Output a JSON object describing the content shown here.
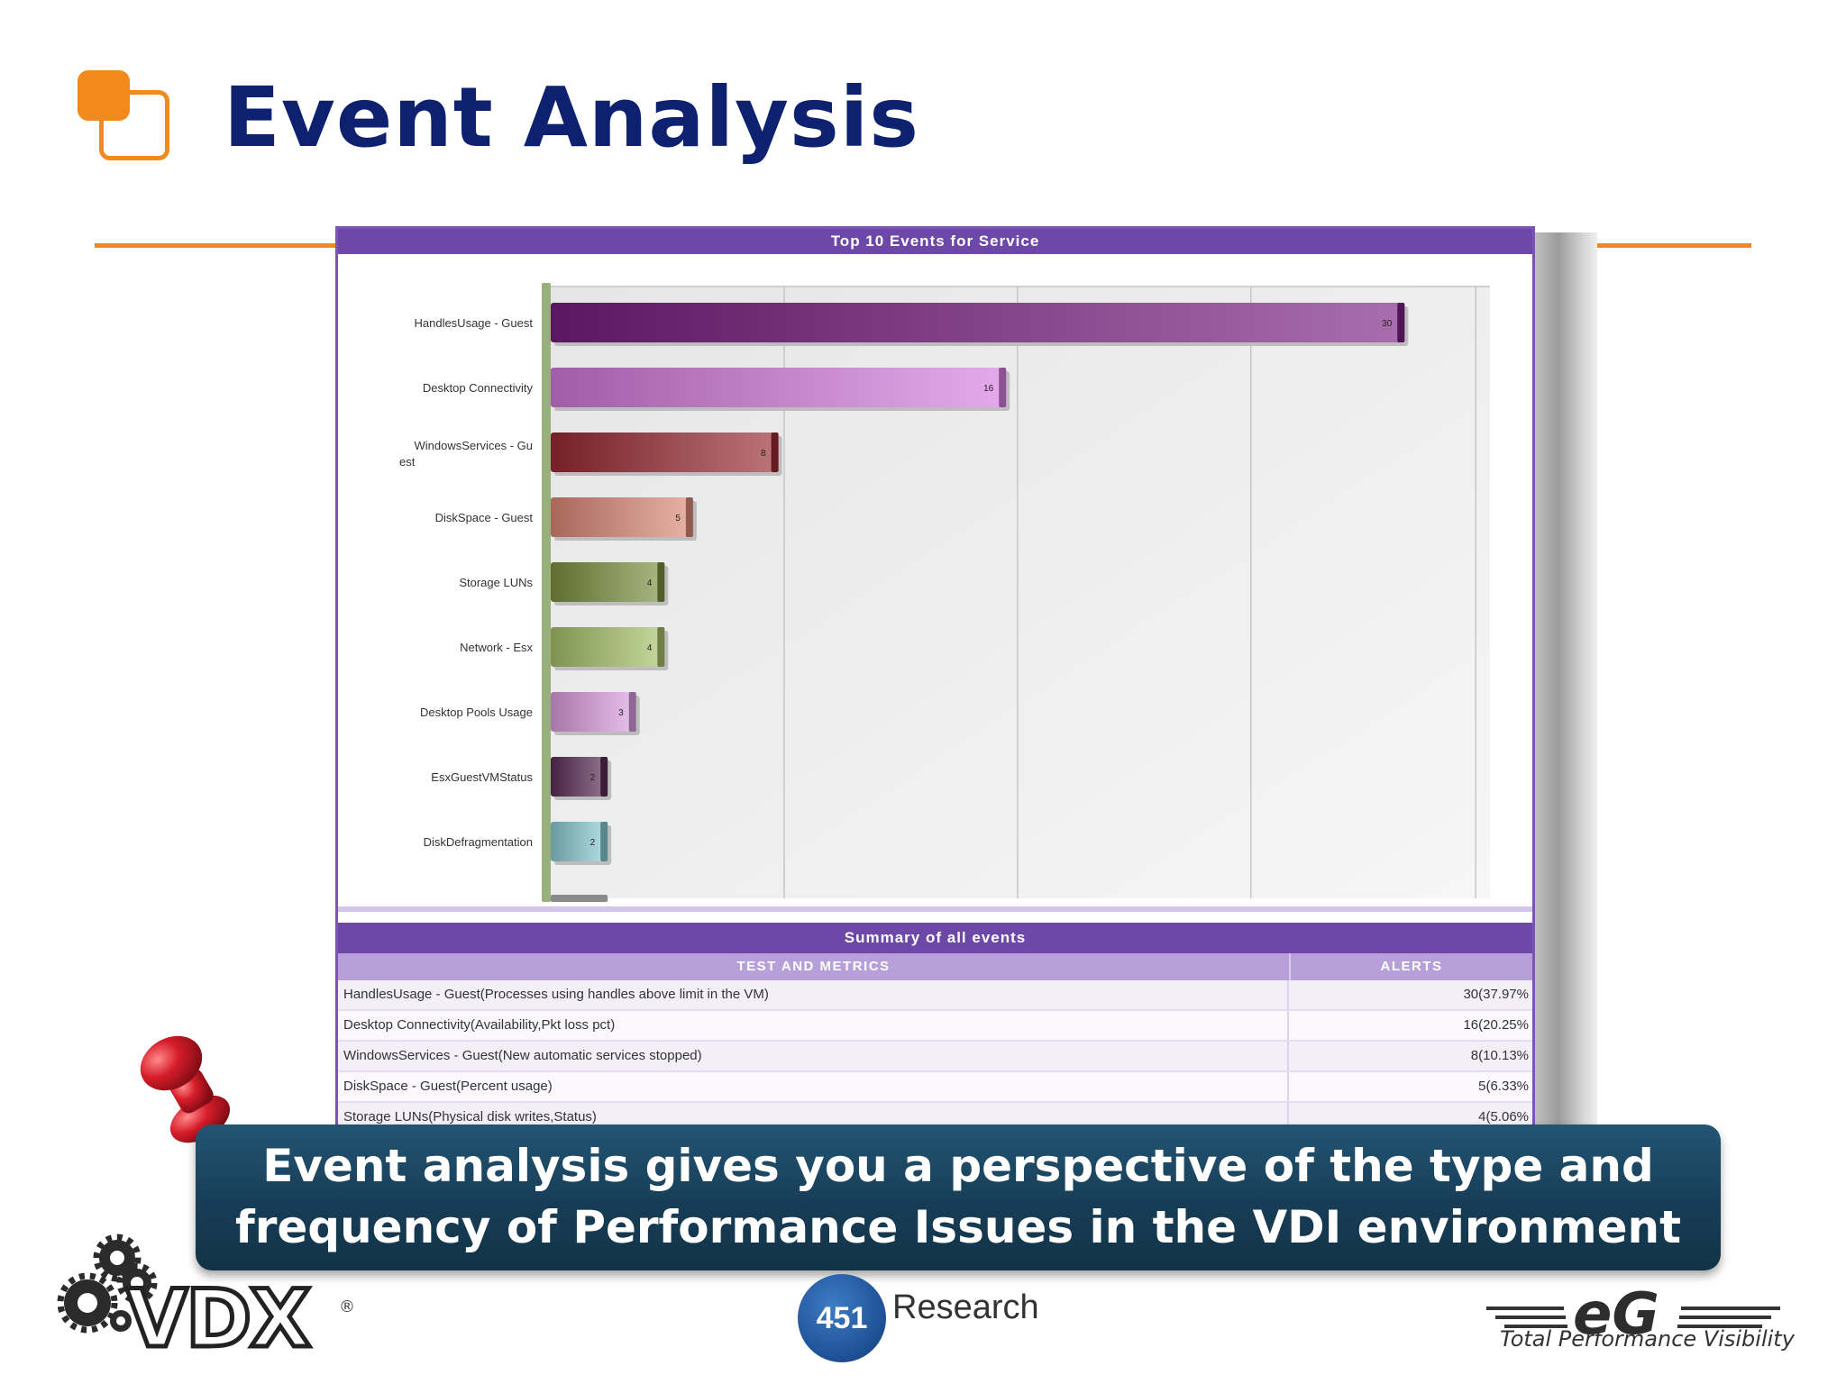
{
  "slide": {
    "title": "Event Analysis"
  },
  "chart_panel": {
    "header": "Top 10 Events for Service"
  },
  "chart_data": {
    "type": "bar",
    "orientation": "horizontal",
    "categories": [
      "HandlesUsage - Guest",
      "Desktop Connectivity",
      "WindowsServices - Gu est",
      "DiskSpace - Guest",
      "Storage LUNs",
      "Network - Esx",
      "Desktop Pools Usage",
      "EsxGuestVMStatus",
      "DiskDefragmentation"
    ],
    "values": [
      30,
      16,
      8,
      5,
      4,
      4,
      3,
      2,
      2
    ],
    "colors": [
      "#7a1f82",
      "#d77ce0",
      "#9a2a33",
      "#df8a78",
      "#7e9140",
      "#a9c46a",
      "#de9fe3",
      "#5b2d56",
      "#8dcfd5"
    ],
    "xlim": [
      0,
      33
    ],
    "grid": true,
    "data_labels": true
  },
  "summary": {
    "header": "Summary of all events",
    "columns": [
      "TEST AND METRICS",
      "ALERTS"
    ],
    "rows": [
      {
        "metric": "HandlesUsage - Guest(Processes using handles above limit in the VM)",
        "alerts": "30(37.97%"
      },
      {
        "metric": "Desktop Connectivity(Availability,Pkt loss pct)",
        "alerts": "16(20.25%"
      },
      {
        "metric": "WindowsServices - Guest(New automatic services stopped)",
        "alerts": "8(10.13%"
      },
      {
        "metric": "DiskSpace - Guest(Percent usage)",
        "alerts": "5(6.33%"
      },
      {
        "metric": "Storage LUNs(Physical disk writes,Status)",
        "alerts": "4(5.06%"
      }
    ]
  },
  "callout": {
    "line1": "Event analysis gives you a perspective of the type and",
    "line2": "frequency of Performance Issues in the VDI environment"
  },
  "footer": {
    "vdx_logo_text": "VDX",
    "vdx_reg": "®",
    "research_number": "451",
    "research_name": "Research",
    "eg_logo_text": "eG",
    "eg_tagline": "Total Performance Visibility"
  }
}
